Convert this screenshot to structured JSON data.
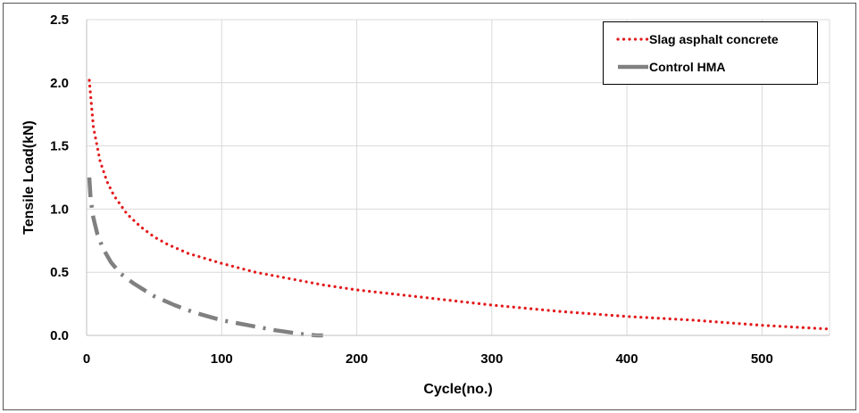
{
  "chart_data": {
    "type": "line",
    "title": "",
    "xlabel": "Cycle(no.)",
    "ylabel": "Tensile Load(kN)",
    "xlim": [
      0,
      550
    ],
    "ylim": [
      0,
      2.5
    ],
    "x_ticks": [
      0,
      100,
      200,
      300,
      400,
      500
    ],
    "y_ticks": [
      0.0,
      0.5,
      1.0,
      1.5,
      2.0,
      2.5
    ],
    "x_tick_labels": [
      "0",
      "100",
      "200",
      "300",
      "400",
      "500"
    ],
    "y_tick_labels": [
      "0.0",
      "0.5",
      "1.0",
      "1.5",
      "2.0",
      "2.5"
    ],
    "grid": true,
    "legend_position": "top-right",
    "series": [
      {
        "name": "Slag asphalt concrete",
        "color": "#e31a1c",
        "style": "dotted",
        "x": [
          2,
          5,
          10,
          15,
          20,
          30,
          40,
          50,
          60,
          75,
          100,
          125,
          150,
          175,
          200,
          250,
          300,
          350,
          400,
          450,
          500,
          550
        ],
        "y": [
          2.02,
          1.65,
          1.38,
          1.22,
          1.11,
          0.96,
          0.86,
          0.78,
          0.72,
          0.65,
          0.57,
          0.5,
          0.45,
          0.4,
          0.36,
          0.3,
          0.24,
          0.19,
          0.15,
          0.12,
          0.08,
          0.05
        ]
      },
      {
        "name": "Control HMA",
        "color": "#808080",
        "style": "dash-dot",
        "x": [
          2,
          3,
          5,
          8,
          12,
          18,
          25,
          35,
          50,
          65,
          80,
          100,
          120,
          140,
          160,
          170,
          175
        ],
        "y": [
          1.25,
          1.08,
          0.93,
          0.8,
          0.69,
          0.58,
          0.49,
          0.41,
          0.31,
          0.24,
          0.18,
          0.12,
          0.08,
          0.04,
          0.01,
          0.0,
          0.0
        ]
      }
    ]
  }
}
